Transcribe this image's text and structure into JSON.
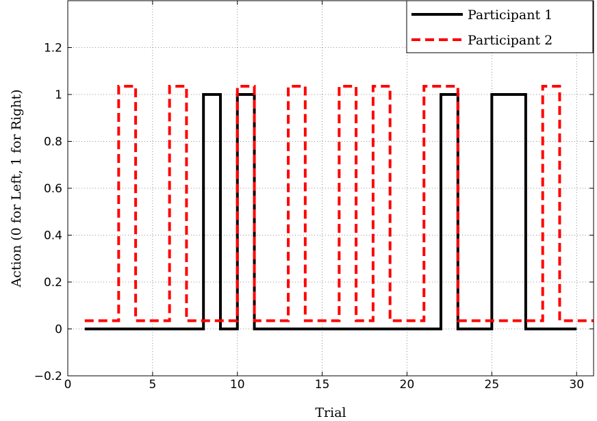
{
  "chart_data": {
    "type": "line",
    "step": true,
    "xlabel": "Trial",
    "ylabel": "Action (0 for Left, 1 for Right)",
    "xlim": [
      0,
      31
    ],
    "ylim": [
      -0.2,
      1.4
    ],
    "xticks": [
      0,
      5,
      10,
      15,
      20,
      25,
      30
    ],
    "yticks": [
      -0.2,
      0,
      0.2,
      0.4,
      0.6,
      0.8,
      1,
      1.2
    ],
    "ytick_labels": [
      "−0.2",
      "0",
      "0.2",
      "0.4",
      "0.6",
      "0.8",
      "1",
      "1.2"
    ],
    "grid": true,
    "legend_position": "top-right",
    "series": [
      {
        "name": "Participant 1",
        "color": "#000000",
        "style": "solid",
        "x_start": 1,
        "x_end": 30,
        "values": [
          0,
          0,
          0,
          0,
          0,
          0,
          0,
          1,
          0,
          1,
          0,
          0,
          0,
          0,
          0,
          0,
          0,
          0,
          0,
          0,
          0,
          1,
          0,
          0,
          1,
          1,
          0,
          0,
          0
        ]
      },
      {
        "name": "Participant 2",
        "color": "#ff0000",
        "style": "dashed",
        "x_start": 1,
        "x_end": 31,
        "values": [
          0,
          0,
          1,
          0,
          0,
          1,
          0,
          0,
          0,
          1,
          0,
          0,
          1,
          0,
          0,
          1,
          0,
          1,
          0,
          0,
          1,
          1,
          0,
          0,
          0,
          0,
          0,
          1,
          0,
          0
        ]
      }
    ]
  }
}
